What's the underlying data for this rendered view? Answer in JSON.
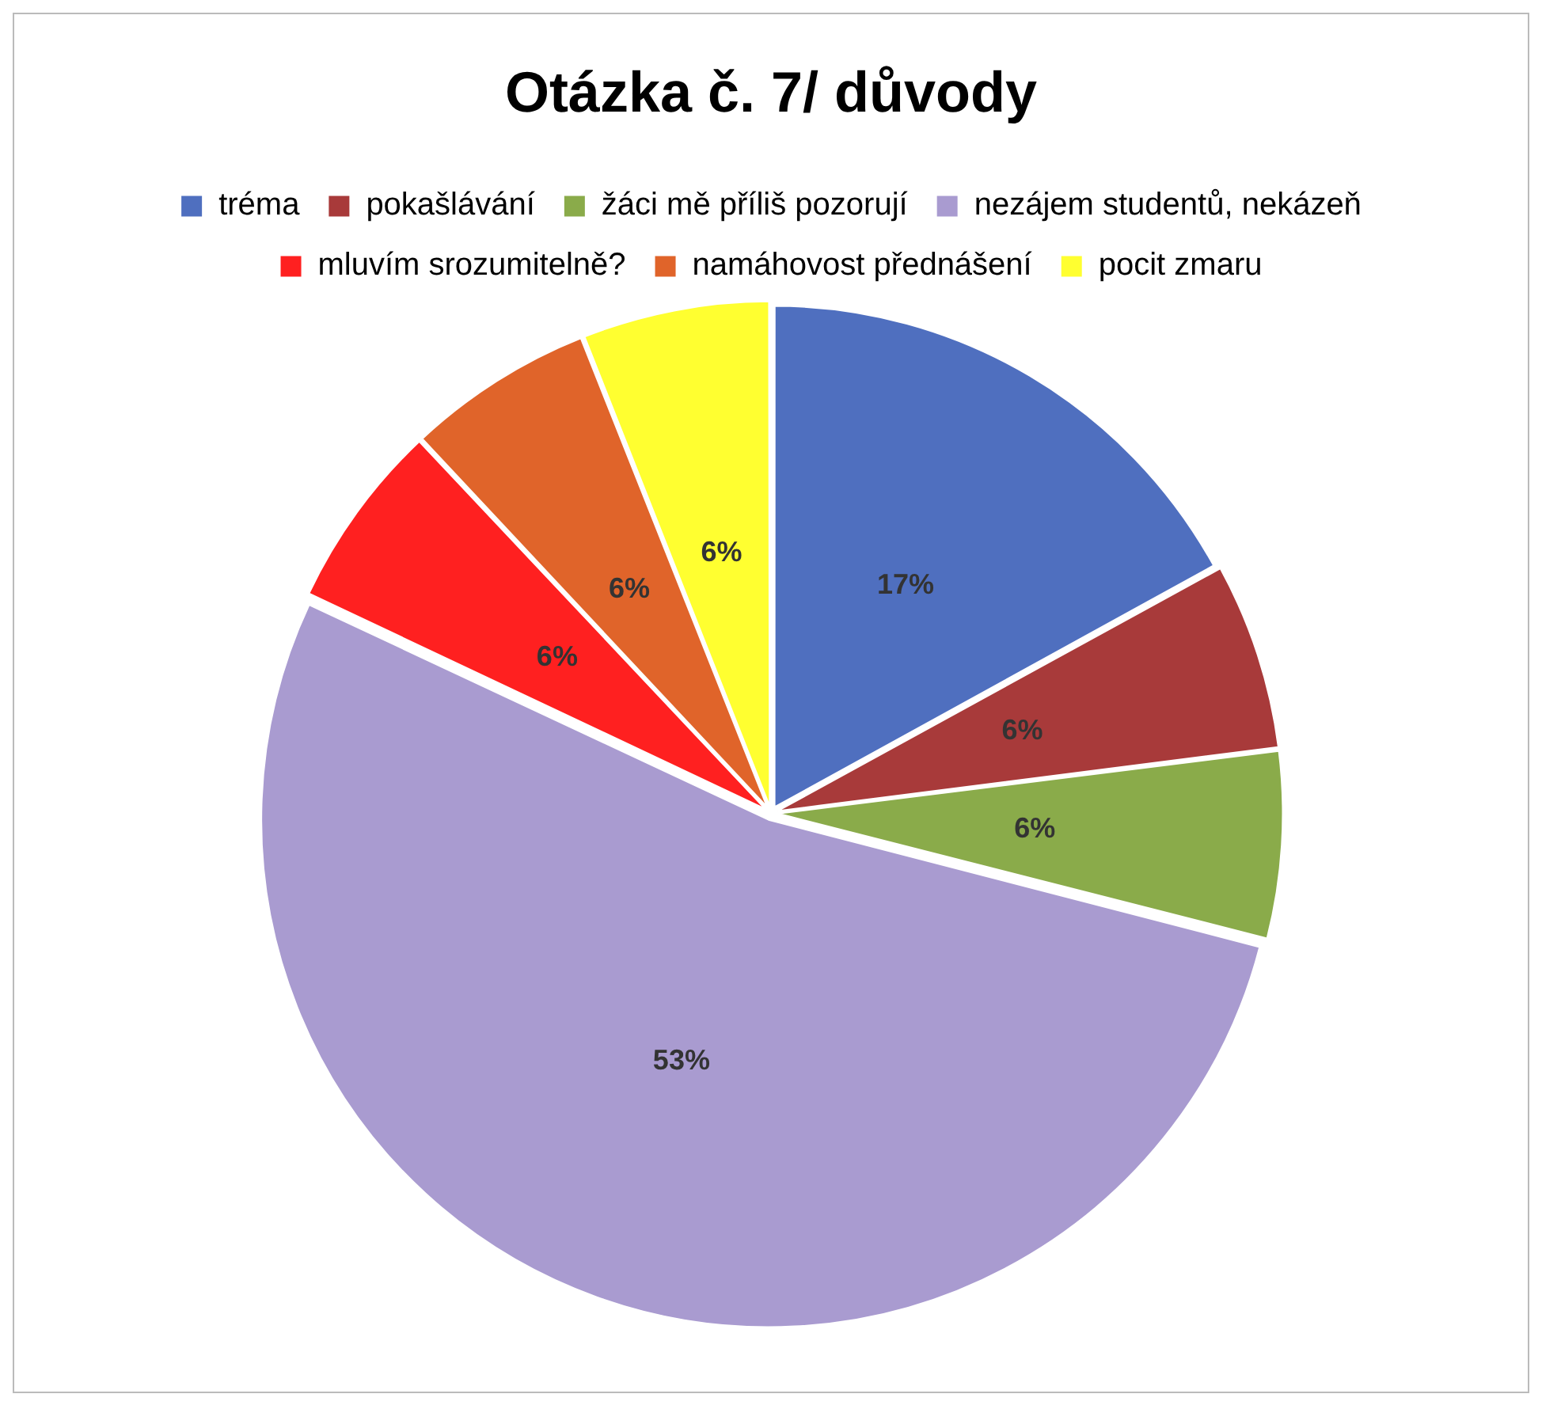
{
  "chart_data": {
    "type": "pie",
    "title": "Otázka č. 7/ důvody",
    "categories": [
      "tréma",
      "pokašlávání",
      "žáci mě příliš pozorují",
      "nezájem studentů, nekázeň",
      "mluvím srozumitelně?",
      "namáhovost přednášení",
      "pocit zmaru"
    ],
    "values": [
      17,
      6,
      6,
      53,
      6,
      6,
      6
    ],
    "colors": [
      "#4f6fbf",
      "#a83a3a",
      "#8aab4a",
      "#a99bd0",
      "#ff2020",
      "#e0642a",
      "#ffff30"
    ],
    "value_labels": [
      "17%",
      "6%",
      "6%",
      "53%",
      "6%",
      "6%",
      "6%"
    ],
    "legend": "top"
  }
}
